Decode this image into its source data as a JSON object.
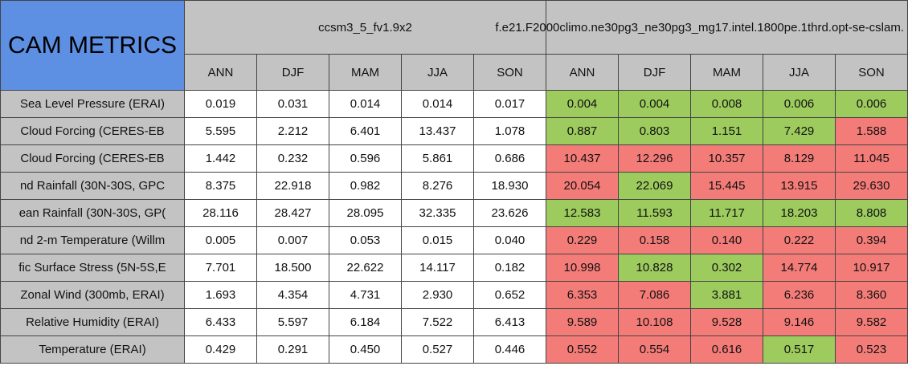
{
  "header": {
    "title": "CAM METRICS",
    "groups": [
      "ccsm3_5_fv1.9x2",
      "f.e21.F2000climo.ne30pg3_ne30pg3_mg17.intel.1800pe.1thrd.opt-se-cslam."
    ],
    "seasons": [
      "ANN",
      "DJF",
      "MAM",
      "JJA",
      "SON"
    ]
  },
  "colors": {
    "good": "#9dcb5e",
    "bad": "#f47c78"
  },
  "table": {
    "rows": [
      {
        "label": "Sea Level Pressure (ERAI)",
        "values": [
          "0.019",
          "0.031",
          "0.014",
          "0.014",
          "0.017",
          "0.004",
          "0.004",
          "0.008",
          "0.006",
          "0.006"
        ],
        "status": [
          "good",
          "good",
          "good",
          "good",
          "good"
        ]
      },
      {
        "label": "Cloud Forcing (CERES-EB",
        "values": [
          "5.595",
          "2.212",
          "6.401",
          "13.437",
          "1.078",
          "0.887",
          "0.803",
          "1.151",
          "7.429",
          "1.588"
        ],
        "status": [
          "good",
          "good",
          "good",
          "good",
          "bad"
        ]
      },
      {
        "label": "Cloud Forcing (CERES-EB",
        "values": [
          "1.442",
          "0.232",
          "0.596",
          "5.861",
          "0.686",
          "10.437",
          "12.296",
          "10.357",
          "8.129",
          "11.045"
        ],
        "status": [
          "bad",
          "bad",
          "bad",
          "bad",
          "bad"
        ]
      },
      {
        "label": "nd Rainfall (30N-30S, GPC",
        "values": [
          "8.375",
          "22.918",
          "0.982",
          "8.276",
          "18.930",
          "20.054",
          "22.069",
          "15.445",
          "13.915",
          "29.630"
        ],
        "status": [
          "bad",
          "good",
          "bad",
          "bad",
          "bad"
        ]
      },
      {
        "label": "ean Rainfall (30N-30S, GP(",
        "values": [
          "28.116",
          "28.427",
          "28.095",
          "32.335",
          "23.626",
          "12.583",
          "11.593",
          "11.717",
          "18.203",
          "8.808"
        ],
        "status": [
          "good",
          "good",
          "good",
          "good",
          "good"
        ]
      },
      {
        "label": "nd 2-m Temperature (Willm",
        "values": [
          "0.005",
          "0.007",
          "0.053",
          "0.015",
          "0.040",
          "0.229",
          "0.158",
          "0.140",
          "0.222",
          "0.394"
        ],
        "status": [
          "bad",
          "bad",
          "bad",
          "bad",
          "bad"
        ]
      },
      {
        "label": "fic Surface Stress (5N-5S,E",
        "values": [
          "7.701",
          "18.500",
          "22.622",
          "14.117",
          "0.182",
          "10.998",
          "10.828",
          "0.302",
          "14.774",
          "10.917"
        ],
        "status": [
          "bad",
          "good",
          "good",
          "bad",
          "bad"
        ]
      },
      {
        "label": "Zonal Wind (300mb, ERAI)",
        "values": [
          "1.693",
          "4.354",
          "4.731",
          "2.930",
          "0.652",
          "6.353",
          "7.086",
          "3.881",
          "6.236",
          "8.360"
        ],
        "status": [
          "bad",
          "bad",
          "good",
          "bad",
          "bad"
        ]
      },
      {
        "label": "Relative Humidity (ERAI)",
        "values": [
          "6.433",
          "5.597",
          "6.184",
          "7.522",
          "6.413",
          "9.589",
          "10.108",
          "9.528",
          "9.146",
          "9.582"
        ],
        "status": [
          "bad",
          "bad",
          "bad",
          "bad",
          "bad"
        ]
      },
      {
        "label": "Temperature (ERAI)",
        "values": [
          "0.429",
          "0.291",
          "0.450",
          "0.527",
          "0.446",
          "0.552",
          "0.554",
          "0.616",
          "0.517",
          "0.523"
        ],
        "status": [
          "bad",
          "bad",
          "bad",
          "good",
          "bad"
        ]
      }
    ]
  }
}
